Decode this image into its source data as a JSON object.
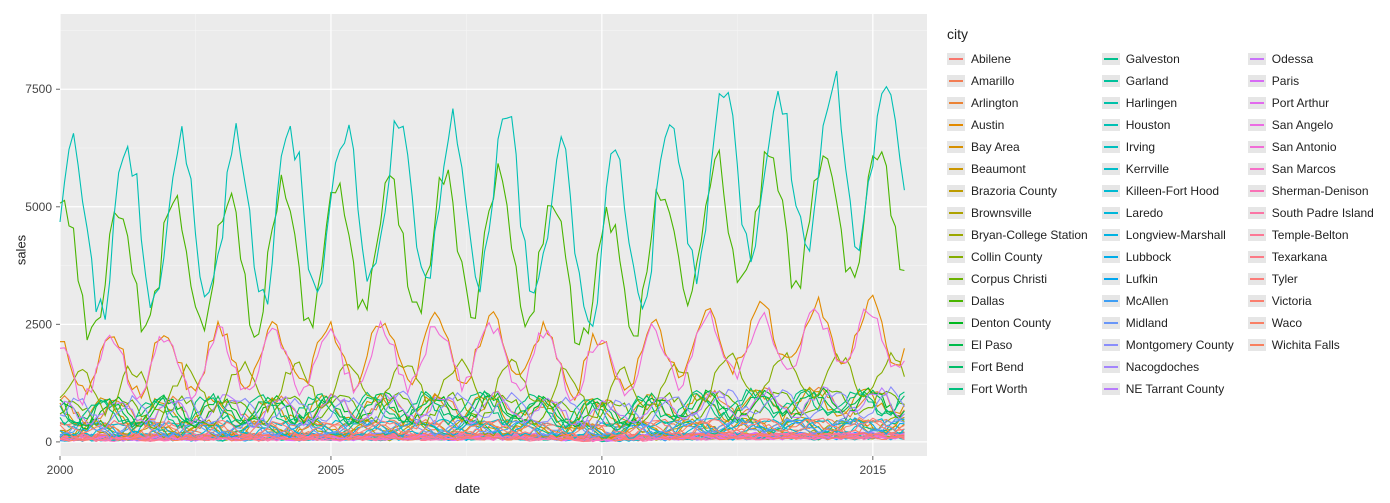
{
  "axis": {
    "x_title": "date",
    "y_title": "sales"
  },
  "legend": {
    "title": "city"
  },
  "chart": {
    "type": "line",
    "background_color": "#ffffff",
    "panel_color": "#ebebeb",
    "grid_major_color": "#ffffff",
    "grid_minor_color": "#f5f5f5",
    "line_width": 1.1,
    "title_fontsize": 14,
    "label_fontsize": 13,
    "tick_fontsize": 12,
    "xlim": [
      2000,
      2016
    ],
    "ylim": [
      -300,
      9100
    ],
    "x_ticks": [
      2000,
      2005,
      2010,
      2015
    ],
    "y_ticks": [
      0,
      2500,
      5000,
      7500
    ],
    "y_minor_step": 1250,
    "x_minor_step": 2.5,
    "n_points": 188
  },
  "cities": [
    {
      "name": "Abilene",
      "color": "#f8766d",
      "tier": 0,
      "phase": 0.0
    },
    {
      "name": "Amarillo",
      "color": "#f27d54",
      "tier": 1,
      "phase": 0.1
    },
    {
      "name": "Arlington",
      "color": "#eb8335",
      "tier": 2,
      "phase": 0.2
    },
    {
      "name": "Austin",
      "color": "#e28a00",
      "tier": 4,
      "phase": 0.3
    },
    {
      "name": "Bay Area",
      "color": "#d79000",
      "tier": 2,
      "phase": 0.4
    },
    {
      "name": "Beaumont",
      "color": "#cb9600",
      "tier": 1,
      "phase": 0.5
    },
    {
      "name": "Brazoria County",
      "color": "#bd9c00",
      "tier": 1,
      "phase": 0.6
    },
    {
      "name": "Brownsville",
      "color": "#ada200",
      "tier": 0,
      "phase": 0.7
    },
    {
      "name": "Bryan-College Station",
      "color": "#9ba700",
      "tier": 1,
      "phase": 0.8
    },
    {
      "name": "Collin County",
      "color": "#85ad00",
      "tier": 3,
      "phase": 0.9
    },
    {
      "name": "Corpus Christi",
      "color": "#6bb100",
      "tier": 2,
      "phase": 1.0
    },
    {
      "name": "Dallas",
      "color": "#49b500",
      "tier": 6,
      "phase": 0.15
    },
    {
      "name": "Denton County",
      "color": "#00b81f",
      "tier": 2,
      "phase": 0.25
    },
    {
      "name": "El Paso",
      "color": "#00bb4b",
      "tier": 2,
      "phase": 0.35
    },
    {
      "name": "Fort Bend",
      "color": "#00bd68",
      "tier": 2,
      "phase": 0.45
    },
    {
      "name": "Fort Worth",
      "color": "#00bf7d",
      "tier": 2,
      "phase": 0.55
    },
    {
      "name": "Galveston",
      "color": "#00c08e",
      "tier": 1,
      "phase": 0.65
    },
    {
      "name": "Garland",
      "color": "#00c19c",
      "tier": 0,
      "phase": 0.75
    },
    {
      "name": "Harlingen",
      "color": "#00c1a9",
      "tier": 0,
      "phase": 0.85
    },
    {
      "name": "Houston",
      "color": "#00c0b4",
      "tier": 7,
      "phase": 0.0
    },
    {
      "name": "Irving",
      "color": "#00bfbf",
      "tier": 0,
      "phase": 0.05
    },
    {
      "name": "Kerrville",
      "color": "#00bdc9",
      "tier": 0,
      "phase": 0.12
    },
    {
      "name": "Killeen-Fort Hood",
      "color": "#00bad2",
      "tier": 1,
      "phase": 0.22
    },
    {
      "name": "Laredo",
      "color": "#00b7da",
      "tier": 0,
      "phase": 0.32
    },
    {
      "name": "Longview-Marshall",
      "color": "#00b2e2",
      "tier": 0,
      "phase": 0.42
    },
    {
      "name": "Lubbock",
      "color": "#00ace9",
      "tier": 1,
      "phase": 0.52
    },
    {
      "name": "Lufkin",
      "color": "#00a6ef",
      "tier": 0,
      "phase": 0.62
    },
    {
      "name": "McAllen",
      "color": "#3e9ef4",
      "tier": 1,
      "phase": 0.72
    },
    {
      "name": "Midland",
      "color": "#6996f8",
      "tier": 1,
      "phase": 0.82
    },
    {
      "name": "Montgomery County",
      "color": "#898dfb",
      "tier": 2,
      "phase": 0.92
    },
    {
      "name": "Nacogdoches",
      "color": "#a384fc",
      "tier": 0,
      "phase": 0.02
    },
    {
      "name": "NE Tarrant County",
      "color": "#b87bfc",
      "tier": 2,
      "phase": 0.18
    },
    {
      "name": "Odessa",
      "color": "#c973f9",
      "tier": 0,
      "phase": 0.28
    },
    {
      "name": "Paris",
      "color": "#d76bf5",
      "tier": 0,
      "phase": 0.38
    },
    {
      "name": "Port Arthur",
      "color": "#e26aee",
      "tier": 0,
      "phase": 0.48
    },
    {
      "name": "San Angelo",
      "color": "#eb6ce3",
      "tier": 0,
      "phase": 0.58
    },
    {
      "name": "San Antonio",
      "color": "#f16dd7",
      "tier": 5,
      "phase": 0.3
    },
    {
      "name": "San Marcos",
      "color": "#f66fc8",
      "tier": 0,
      "phase": 0.78
    },
    {
      "name": "Sherman-Denison",
      "color": "#f972b6",
      "tier": 0,
      "phase": 0.88
    },
    {
      "name": "South Padre Island",
      "color": "#fb75a5",
      "tier": 0,
      "phase": 0.98
    },
    {
      "name": "Temple-Belton",
      "color": "#fc7895",
      "tier": 0,
      "phase": 0.08
    },
    {
      "name": "Texarkana",
      "color": "#fc7a86",
      "tier": 0,
      "phase": 0.14
    },
    {
      "name": "Tyler",
      "color": "#fb7c79",
      "tier": 1,
      "phase": 0.24
    },
    {
      "name": "Victoria",
      "color": "#fa7e6e",
      "tier": 0,
      "phase": 0.34
    },
    {
      "name": "Waco",
      "color": "#f97f65",
      "tier": 1,
      "phase": 0.44
    },
    {
      "name": "Wichita Falls",
      "color": "#f8805f",
      "tier": 0,
      "phase": 0.54
    }
  ],
  "tiers": {
    "0": {
      "base": 90,
      "amp": 55,
      "growth": 2.5,
      "noise": 30
    },
    "1": {
      "base": 260,
      "amp": 130,
      "growth": 6,
      "noise": 60
    },
    "2": {
      "base": 620,
      "amp": 260,
      "growth": 14,
      "noise": 110
    },
    "3": {
      "base": 1100,
      "amp": 420,
      "growth": 22,
      "noise": 150
    },
    "4": {
      "base": 1650,
      "amp": 650,
      "growth": 45,
      "noise": 200
    },
    "5": {
      "base": 1550,
      "amp": 620,
      "growth": 42,
      "noise": 190
    },
    "6": {
      "base": 3600,
      "amp": 1400,
      "growth": 85,
      "noise": 350
    },
    "7": {
      "base": 4400,
      "amp": 1750,
      "growth": 110,
      "noise": 420
    }
  }
}
